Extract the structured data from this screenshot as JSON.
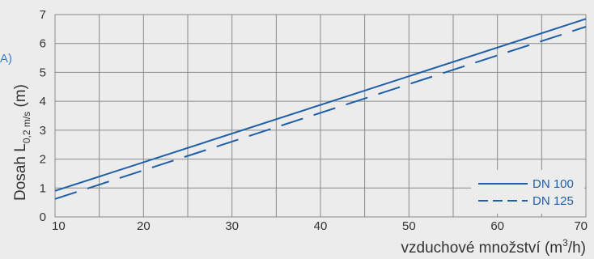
{
  "chart_data": {
    "type": "line",
    "marker_label": "A)",
    "xlabel_text": "vzduchové množství (m",
    "xlabel_sup": "3",
    "xlabel_end": "/h)",
    "ylabel_text": "Dosah L",
    "ylabel_sub": "0,2 m/s",
    "ylabel_end": " (m)",
    "xlim": [
      10,
      70
    ],
    "ylim": [
      0,
      7
    ],
    "xticks": [
      "10",
      "20",
      "30",
      "40",
      "50",
      "60",
      "70"
    ],
    "yticks": [
      "0",
      "1",
      "2",
      "3",
      "4",
      "5",
      "6",
      "7"
    ],
    "grid": true,
    "legend_position": "bottom-right",
    "series": [
      {
        "name": "DN 100",
        "style": "solid",
        "x": [
          10,
          70
        ],
        "y": [
          0.9,
          6.85
        ]
      },
      {
        "name": "DN 125",
        "style": "dashed",
        "x": [
          10,
          70
        ],
        "y": [
          0.62,
          6.58
        ]
      }
    ],
    "colors": {
      "line": "#1f5fa8",
      "grid": "#8a8a8a",
      "background": "#ececec",
      "marker": "#3a7cc8"
    }
  }
}
